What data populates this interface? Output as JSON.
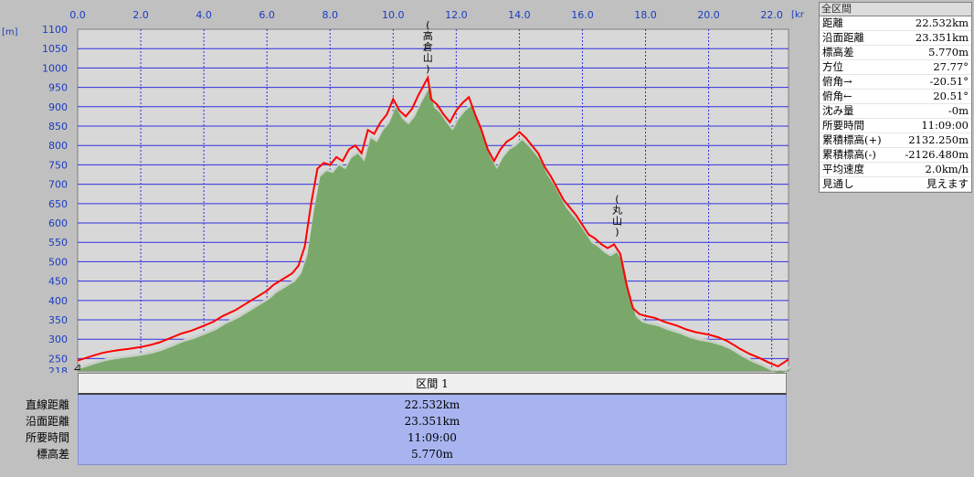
{
  "chart_data": {
    "type": "area",
    "title": "",
    "xlabel": "",
    "ylabel": "",
    "x_unit": "[km]",
    "y_unit": "[m]",
    "xlim": [
      0,
      22.532
    ],
    "ylim": [
      218,
      1100
    ],
    "x_ticks": [
      "0.0",
      "2.0",
      "4.0",
      "6.0",
      "8.0",
      "10.0",
      "12.0",
      "14.0",
      "16.0",
      "18.0",
      "20.0",
      "22.0"
    ],
    "y_ticks": [
      "1100",
      "1050",
      "1000",
      "950",
      "900",
      "850",
      "800",
      "750",
      "700",
      "650",
      "600",
      "550",
      "500",
      "450",
      "400",
      "350",
      "300",
      "250",
      "218"
    ],
    "grid": true,
    "colors": {
      "fill": "#7aa86a",
      "line": "#ff0000",
      "shadow": "#c8d0c8",
      "grid": "#3030e0",
      "plot_bg": "#d8d8d8"
    },
    "annotations": [
      {
        "text": "(高倉山)",
        "x": 11.1,
        "y": 965
      },
      {
        "text": "(丸山)",
        "x": 17.1,
        "y": 545
      }
    ],
    "series": [
      {
        "x": [
          0.0,
          0.2,
          0.5,
          0.8,
          1.0,
          1.3,
          1.6,
          2.0,
          2.3,
          2.6,
          3.0,
          3.3,
          3.6,
          4.0,
          4.3,
          4.6,
          5.0,
          5.3,
          5.6,
          6.0,
          6.2,
          6.5,
          6.8,
          7.0,
          7.2,
          7.4,
          7.6,
          7.8,
          8.0,
          8.2,
          8.4,
          8.6,
          8.8,
          9.0,
          9.2,
          9.4,
          9.6,
          9.8,
          10.0,
          10.2,
          10.4,
          10.6,
          10.8,
          11.0,
          11.1,
          11.2,
          11.4,
          11.6,
          11.8,
          12.0,
          12.2,
          12.4,
          12.6,
          12.8,
          13.0,
          13.2,
          13.4,
          13.6,
          13.8,
          14.0,
          14.2,
          14.4,
          14.6,
          14.8,
          15.0,
          15.2,
          15.4,
          15.6,
          15.8,
          16.0,
          16.2,
          16.4,
          16.6,
          16.8,
          17.0,
          17.2,
          17.4,
          17.6,
          17.8,
          18.0,
          18.3,
          18.6,
          19.0,
          19.3,
          19.6,
          20.0,
          20.3,
          20.6,
          21.0,
          21.3,
          21.6,
          21.9,
          22.2,
          22.532
        ],
        "values": [
          245,
          250,
          258,
          265,
          268,
          272,
          275,
          280,
          285,
          292,
          305,
          315,
          322,
          335,
          345,
          360,
          375,
          390,
          405,
          425,
          440,
          455,
          470,
          490,
          540,
          650,
          740,
          755,
          750,
          770,
          760,
          790,
          800,
          780,
          840,
          830,
          860,
          880,
          920,
          890,
          875,
          895,
          930,
          960,
          975,
          920,
          905,
          880,
          860,
          890,
          910,
          925,
          880,
          840,
          790,
          760,
          790,
          810,
          820,
          835,
          820,
          800,
          780,
          745,
          720,
          690,
          660,
          640,
          620,
          595,
          570,
          560,
          545,
          535,
          545,
          520,
          440,
          380,
          365,
          360,
          355,
          345,
          335,
          325,
          318,
          312,
          305,
          295,
          275,
          262,
          252,
          240,
          230,
          248
        ]
      }
    ]
  },
  "stats_panel": {
    "header": "全区間",
    "rows": [
      {
        "label": "距離",
        "value": "22.532km"
      },
      {
        "label": "沿面距離",
        "value": "23.351km"
      },
      {
        "label": "標高差",
        "value": "5.770m"
      },
      {
        "label": "方位",
        "value": "27.77°"
      },
      {
        "label": "俯角→",
        "value": "-20.51°"
      },
      {
        "label": "俯角←",
        "value": "20.51°"
      },
      {
        "label": "沈み量",
        "value": "-0m"
      },
      {
        "label": "所要時間",
        "value": "11:09:00"
      },
      {
        "label": "累積標高(+)",
        "value": "2132.250m"
      },
      {
        "label": "累積標高(-)",
        "value": "-2126.480m"
      },
      {
        "label": "平均速度",
        "value": "2.0km/h"
      },
      {
        "label": "見通し",
        "value": "見えます"
      }
    ]
  },
  "segment_table": {
    "title": "区間 1",
    "labels": [
      "直線距離",
      "沿面距離",
      "所要時間",
      "標高差"
    ],
    "values": [
      "22.532km",
      "23.351km",
      "11:09:00",
      "5.770m"
    ]
  }
}
